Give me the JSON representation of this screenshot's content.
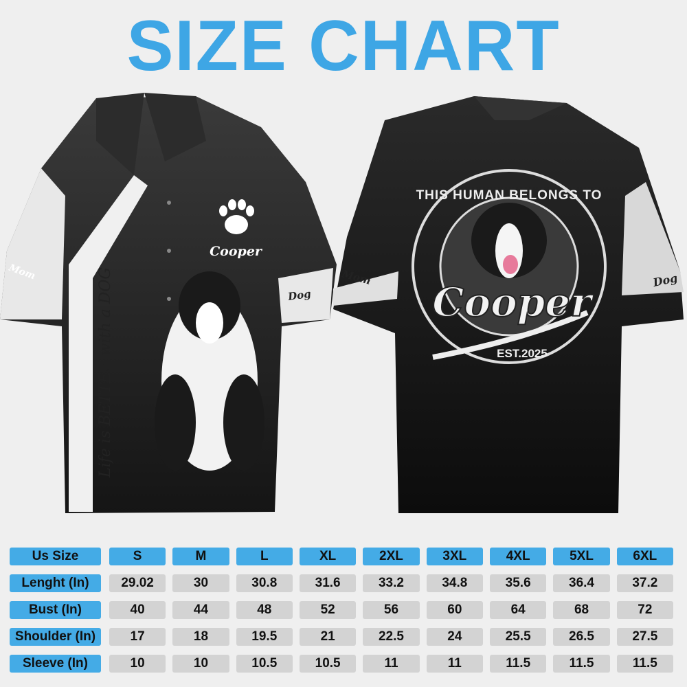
{
  "title": "SIZE CHART",
  "colors": {
    "accent": "#44abe6",
    "cell": "#d3d3d3",
    "shirt": "#1e1e1e"
  },
  "front_shirt": {
    "paw_icon": "paw-icon",
    "name": "Cooper",
    "slogan": "Life is BETTER with a DOG",
    "sleeve_left": "Mom",
    "sleeve_right": "Dog"
  },
  "back_shirt": {
    "badge_text": "THIS HUMAN BELONGS TO",
    "name": "Cooper",
    "est": "EST.2025",
    "sleeve_left": "Mom",
    "sleeve_right": "Dog"
  },
  "size_table": {
    "header": {
      "label": "Us Size",
      "sizes": [
        "S",
        "M",
        "L",
        "XL",
        "2XL",
        "3XL",
        "4XL",
        "5XL",
        "6XL"
      ]
    },
    "rows": [
      {
        "label": "Lenght (In)",
        "values": [
          "29.02",
          "30",
          "30.8",
          "31.6",
          "33.2",
          "34.8",
          "35.6",
          "36.4",
          "37.2"
        ]
      },
      {
        "label": "Bust (In)",
        "values": [
          "40",
          "44",
          "48",
          "52",
          "56",
          "60",
          "64",
          "68",
          "72"
        ]
      },
      {
        "label": "Shoulder (In)",
        "values": [
          "17",
          "18",
          "19.5",
          "21",
          "22.5",
          "24",
          "25.5",
          "26.5",
          "27.5"
        ]
      },
      {
        "label": "Sleeve (In)",
        "values": [
          "10",
          "10",
          "10.5",
          "10.5",
          "11",
          "11",
          "11.5",
          "11.5",
          "11.5"
        ]
      }
    ]
  }
}
